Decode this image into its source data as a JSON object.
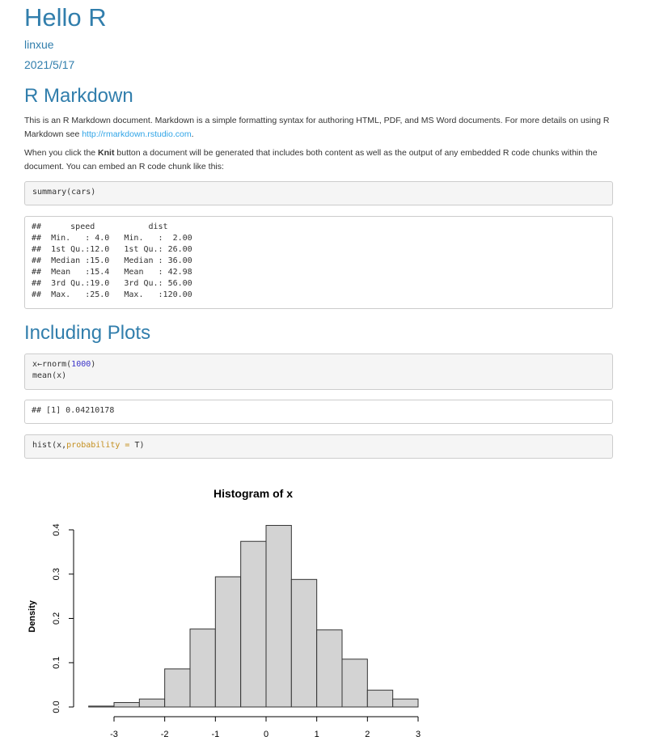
{
  "header": {
    "title": "Hello R",
    "author": "linxue",
    "date": "2021/5/17"
  },
  "section1": {
    "heading": "R Markdown",
    "para1_text": "This is an R Markdown document. Markdown is a simple formatting syntax for authoring HTML, PDF, and MS Word documents. For more details on using R Markdown see ",
    "para1_link": "http://rmarkdown.rstudio.com",
    "para1_end": ".",
    "para2_before": "When you click the ",
    "para2_bold": "Knit",
    "para2_after": " button a document will be generated that includes both content as well as the output of any embedded R code chunks within the document. You can embed an R code chunk like this:",
    "code1": "summary(cars)",
    "output1": "##      speed           dist       \n##  Min.   : 4.0   Min.   :  2.00  \n##  1st Qu.:12.0   1st Qu.: 26.00  \n##  Median :15.0   Median : 36.00  \n##  Mean   :15.4   Mean   : 42.98  \n##  3rd Qu.:19.0   3rd Qu.: 56.00  \n##  Max.   :25.0   Max.   :120.00  "
  },
  "section2": {
    "heading": "Including Plots",
    "code2_line1_a": "x←rnorm(",
    "code2_line1_num": "1000",
    "code2_line1_b": ")",
    "code2_line2": "mean(x)",
    "output2": "## [1] 0.04210178",
    "code3_a": "hist(x,",
    "code3_arg": "probability = ",
    "code3_b": "T)"
  },
  "chart_data": {
    "type": "bar",
    "title": "Histogram of x",
    "xlabel": "",
    "ylabel": "Density",
    "bin_edges": [
      -3.5,
      -3.0,
      -2.5,
      -2.0,
      -1.5,
      -1.0,
      -0.5,
      0.0,
      0.5,
      1.0,
      1.5,
      2.0,
      2.5,
      3.0
    ],
    "values": [
      0.002,
      0.01,
      0.018,
      0.086,
      0.176,
      0.294,
      0.374,
      0.41,
      0.288,
      0.174,
      0.108,
      0.038,
      0.018
    ],
    "xticks": [
      "-3",
      "-2",
      "-1",
      "0",
      "1",
      "2",
      "3"
    ],
    "xtick_values": [
      -3,
      -2,
      -1,
      0,
      1,
      2,
      3
    ],
    "yticks": [
      "0.0",
      "0.1",
      "0.2",
      "0.3",
      "0.4"
    ],
    "ytick_values": [
      0.0,
      0.1,
      0.2,
      0.3,
      0.4
    ],
    "xlim": [
      -3.5,
      3.0
    ],
    "ylim": [
      0,
      0.4
    ],
    "bar_color": "#d3d3d3"
  }
}
